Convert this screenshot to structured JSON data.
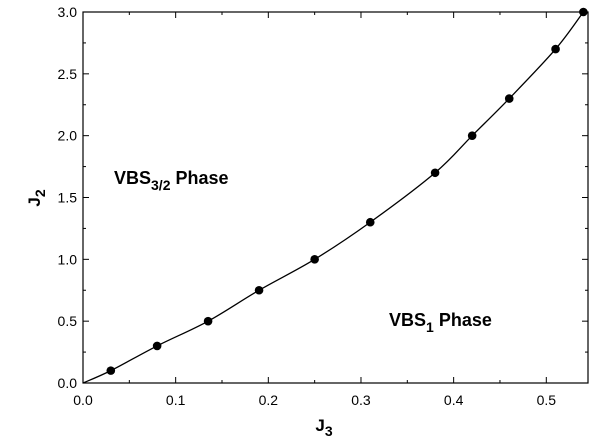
{
  "chart_data": {
    "type": "line",
    "markers": "filled-circle",
    "color": "#000000",
    "xlim": [
      0.0,
      0.545
    ],
    "ylim": [
      0.0,
      3.0
    ],
    "xticks": [
      0.0,
      0.1,
      0.2,
      0.3,
      0.4,
      0.5
    ],
    "yticks": [
      0.0,
      0.5,
      1.0,
      1.5,
      2.0,
      2.5,
      3.0
    ],
    "xtick_labels": [
      "0.0",
      "0.1",
      "0.2",
      "0.3",
      "0.4",
      "0.5"
    ],
    "ytick_labels": [
      "0.0",
      "0.5",
      "1.0",
      "1.5",
      "2.0",
      "2.5",
      "3.0"
    ],
    "xlabel": {
      "main": "J",
      "sub": "3"
    },
    "ylabel": {
      "main": "J",
      "sub": "2"
    },
    "grid": false,
    "series": [
      {
        "x": [
          0.03,
          0.08,
          0.135,
          0.19,
          0.25,
          0.31,
          0.38,
          0.42,
          0.46,
          0.51,
          0.54
        ],
        "y": [
          0.1,
          0.3,
          0.5,
          0.75,
          1.0,
          1.3,
          1.7,
          2.0,
          2.3,
          2.7,
          3.0
        ]
      }
    ],
    "line_start": {
      "x": 0.0,
      "y": 0.0
    },
    "annotations": [
      {
        "main": "VBS",
        "sub": "3/2",
        "rest": " Phase"
      },
      {
        "main": "VBS",
        "sub": "1",
        "rest": " Phase"
      }
    ]
  }
}
